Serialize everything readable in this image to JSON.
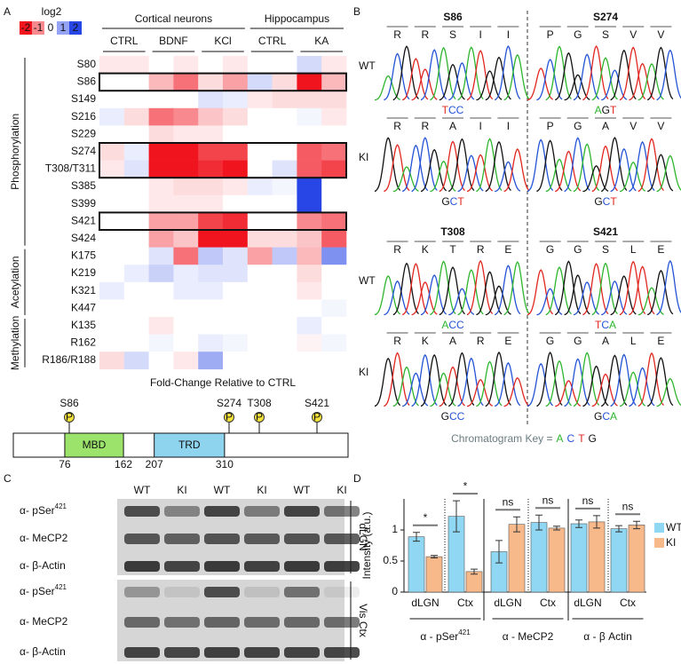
{
  "panel_labels": [
    "A",
    "B",
    "C",
    "D"
  ],
  "heatmap": {
    "scale": {
      "title": "log2",
      "ticks": [
        -2,
        -1,
        0,
        1,
        2
      ]
    },
    "groups": [
      {
        "label": "Cortical neurons",
        "conditions": [
          "CTRL",
          "BDNF",
          "KCl"
        ]
      },
      {
        "label": "Hippocampus",
        "conditions": [
          "CTRL",
          "KA"
        ]
      }
    ],
    "categories": [
      {
        "label": "Phosphorylation",
        "rows": 11
      },
      {
        "label": "Acetylation",
        "rows": 4
      },
      {
        "label": "Methylation",
        "rows": 3
      }
    ],
    "rows": [
      {
        "label": "S80",
        "values": [
          -0.2,
          -0.2,
          0,
          -0.2,
          0,
          -0.2,
          0,
          0,
          0.4,
          -0.2
        ]
      },
      {
        "label": "S86",
        "values": [
          0,
          0,
          -0.6,
          -1.2,
          -0.3,
          -0.8,
          0.4,
          -0.3,
          -2,
          -0.6
        ]
      },
      {
        "label": "S149",
        "values": [
          0,
          0,
          0,
          0,
          0.3,
          0.2,
          -0.2,
          -0.3,
          -0.3,
          -0.3
        ]
      },
      {
        "label": "S216",
        "values": [
          0.2,
          -0.3,
          -1.2,
          -1,
          -0.5,
          -0.3,
          0,
          0,
          0.1,
          -0.2
        ]
      },
      {
        "label": "S229",
        "values": [
          0,
          0,
          -0.3,
          -0.2,
          -0.2,
          0,
          0,
          0,
          0,
          0
        ]
      },
      {
        "label": "S274",
        "values": [
          -0.3,
          0.2,
          -2,
          -2,
          -1.6,
          -1.6,
          0,
          0,
          -1.4,
          -1.2
        ]
      },
      {
        "label": "T308/T311",
        "values": [
          -0.2,
          0.3,
          -2,
          -2,
          -1.8,
          -2,
          0,
          0.3,
          -1.4,
          -1.6
        ]
      },
      {
        "label": "S385",
        "values": [
          0,
          0,
          -0.2,
          -0.3,
          -0.3,
          -0.2,
          0.2,
          0.1,
          2,
          0
        ]
      },
      {
        "label": "S399",
        "values": [
          0,
          0,
          -0.2,
          -0.2,
          -0.2,
          0,
          0,
          0,
          2,
          0
        ]
      },
      {
        "label": "S421",
        "values": [
          0,
          0,
          -0.8,
          -0.8,
          -1.6,
          -1.8,
          0,
          0,
          -1,
          -1.2
        ]
      },
      {
        "label": "S424",
        "values": [
          0,
          0,
          -0.8,
          -0.5,
          -2,
          -2,
          -0.3,
          -0.3,
          -0.5,
          -1.4
        ]
      },
      {
        "label": "K175",
        "values": [
          0,
          0,
          0.3,
          -1.2,
          0.6,
          0.3,
          -0.8,
          0.6,
          -0.6,
          1.2
        ]
      },
      {
        "label": "K219",
        "values": [
          0,
          0.2,
          0.5,
          0.2,
          0.3,
          0.3,
          0,
          0,
          -0.3,
          0
        ]
      },
      {
        "label": "K321",
        "values": [
          0.2,
          0,
          0,
          0.2,
          0.2,
          0,
          0,
          0,
          -0.2,
          0
        ]
      },
      {
        "label": "K447",
        "values": [
          0,
          0,
          0,
          0,
          0,
          0,
          0,
          0,
          0,
          0.1
        ]
      },
      {
        "label": "K135",
        "values": [
          0,
          0,
          -0.2,
          0,
          0,
          0,
          0,
          0,
          0.2,
          0
        ]
      },
      {
        "label": "R162",
        "values": [
          0,
          0,
          0.1,
          0,
          0.2,
          0.1,
          0,
          0,
          -0.1,
          0.1
        ]
      },
      {
        "label": "R186/R188",
        "values": [
          -0.3,
          0.4,
          0,
          -0.2,
          0.9,
          0,
          0,
          0,
          0,
          0
        ]
      }
    ],
    "footer": "Fold-Change Relative to CTRL"
  },
  "protein_map": {
    "sites": [
      "S86",
      "S274",
      "T308",
      "S421"
    ],
    "phospho": "P",
    "domains": [
      {
        "label": "MBD",
        "start": 76,
        "end": 162
      },
      {
        "label": "TRD",
        "start": 207,
        "end": 310
      }
    ]
  },
  "chromatograms": {
    "genotypes": [
      "WT",
      "KI"
    ],
    "blocks": [
      {
        "site": "S86",
        "wt": {
          "aa": [
            "R",
            "R",
            "S",
            "I",
            "I"
          ],
          "codon": "TCC"
        },
        "ki": {
          "aa": [
            "R",
            "R",
            "A",
            "I",
            "I"
          ],
          "codon": "GCT"
        }
      },
      {
        "site": "S274",
        "wt": {
          "aa": [
            "P",
            "G",
            "S",
            "V",
            "V"
          ],
          "codon": "AGT"
        },
        "ki": {
          "aa": [
            "P",
            "G",
            "A",
            "V",
            "V"
          ],
          "codon": "GCT"
        }
      },
      {
        "site": "T308",
        "wt": {
          "aa": [
            "R",
            "K",
            "T",
            "R",
            "E"
          ],
          "codon": "ACC"
        },
        "ki": {
          "aa": [
            "R",
            "K",
            "A",
            "R",
            "E"
          ],
          "codon": "GCC"
        }
      },
      {
        "site": "S421",
        "wt": {
          "aa": [
            "G",
            "G",
            "S",
            "L",
            "E"
          ],
          "codon": "TCA"
        },
        "ki": {
          "aa": [
            "G",
            "G",
            "A",
            "L",
            "E"
          ],
          "codon": "GCA"
        }
      }
    ],
    "key": {
      "label": "Chromatogram Key =",
      "bases": [
        "A",
        "C",
        "T",
        "G"
      ],
      "colors": {
        "A": "#2db52d",
        "C": "#2453d6",
        "T": "#e0261f",
        "G": "#111111"
      }
    }
  },
  "western": {
    "lanes": [
      "WT",
      "KI",
      "WT",
      "KI",
      "WT",
      "KI"
    ],
    "blots": [
      {
        "region": "dLGN",
        "rows": [
          {
            "text": "α- pSer",
            "sup": "421"
          },
          {
            "text": "α- MeCP2"
          },
          {
            "text": "α- β-Actin"
          }
        ]
      },
      {
        "region": "Vis Ctx",
        "rows": [
          {
            "text": "α- pSer",
            "sup": "421"
          },
          {
            "text": "α- MeCP2"
          },
          {
            "text": "α- β-Actin"
          }
        ]
      }
    ]
  },
  "chart_data": {
    "type": "bar",
    "ylabel": "Intensity (a.u.)",
    "categories": [
      "dLGN",
      "Ctx",
      "dLGN",
      "Ctx",
      "dLGN",
      "Ctx"
    ],
    "groups": [
      {
        "text": "α - pSer",
        "sup": "421"
      },
      {
        "text": "α - MeCP2"
      },
      {
        "text": "α - β Actin"
      }
    ],
    "series": [
      {
        "name": "WT",
        "color": "#8fd7f2",
        "values": [
          0.89,
          1.22,
          0.65,
          1.12,
          1.1,
          1.02
        ],
        "errors": [
          0.07,
          0.25,
          0.18,
          0.12,
          0.06,
          0.05
        ]
      },
      {
        "name": "KI",
        "color": "#f7b88a",
        "values": [
          0.57,
          0.33,
          1.09,
          1.03,
          1.13,
          1.08
        ],
        "errors": [
          0.02,
          0.04,
          0.12,
          0.03,
          0.1,
          0.06
        ]
      }
    ],
    "significance": [
      "*",
      "*",
      "ns",
      "ns",
      "ns",
      "ns"
    ],
    "ylim": [
      0,
      1.5
    ],
    "yticks": [
      0,
      0.5,
      1
    ]
  }
}
